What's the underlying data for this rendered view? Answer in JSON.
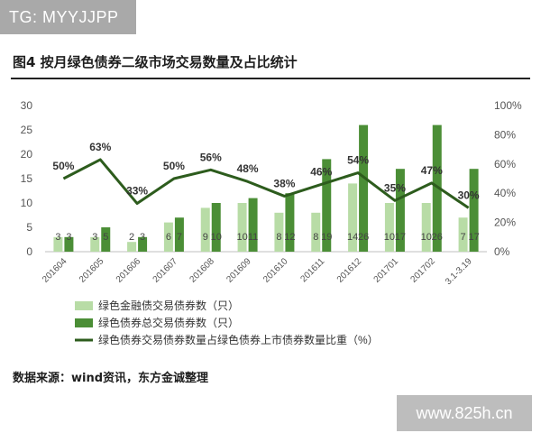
{
  "watermark_top": "TG: MYYJJPP",
  "watermark_bottom": "www.825h.cn",
  "figure_title": "图4  按月绿色债券二级市场交易数量及占比统计",
  "source": "数据来源：wind资讯，东方金诚整理",
  "colors": {
    "series_light": "#b8dca6",
    "series_dark": "#4b8e36",
    "line": "#2d5c1d",
    "axis_text": "#555555"
  },
  "chart_data": {
    "type": "bar+line",
    "categories": [
      "201604",
      "201605",
      "201606",
      "201607",
      "201608",
      "201609",
      "201610",
      "201611",
      "201612",
      "201701",
      "201702",
      "3.1-3.19"
    ],
    "series": [
      {
        "name": "绿色金融债交易债券数（只）",
        "type": "bar",
        "axis": "left",
        "values": [
          3,
          3,
          2,
          6,
          9,
          10,
          8,
          8,
          14,
          10,
          10,
          7
        ]
      },
      {
        "name": "绿色债券总交易债券数（只）",
        "type": "bar",
        "axis": "left",
        "values": [
          3,
          5,
          3,
          7,
          10,
          11,
          12,
          19,
          26,
          17,
          26,
          17
        ]
      },
      {
        "name": "绿色债券交易债券数量占绿色债券上市债券数量比重（%）",
        "type": "line",
        "axis": "right",
        "values": [
          50,
          63,
          33,
          50,
          56,
          48,
          38,
          46,
          54,
          35,
          47,
          30
        ]
      }
    ],
    "bar_labels": [
      [
        "3",
        "3"
      ],
      [
        "3",
        "5"
      ],
      [
        "2",
        "3"
      ],
      [
        "6",
        "7"
      ],
      [
        "9",
        "10"
      ],
      [
        "10",
        "11"
      ],
      [
        "8",
        "12"
      ],
      [
        "8",
        "19"
      ],
      [
        "14",
        "26"
      ],
      [
        "10",
        "17"
      ],
      [
        "10",
        "26"
      ],
      [
        "7",
        "17"
      ]
    ],
    "line_labels": [
      "50%",
      "63%",
      "33%",
      "50%",
      "56%",
      "48%",
      "38%",
      "46%",
      "54%",
      "35%",
      "47%",
      "30%"
    ],
    "left_axis": {
      "min": 0,
      "max": 30,
      "ticks": [
        "0",
        "5",
        "10",
        "15",
        "20",
        "25",
        "30"
      ]
    },
    "right_axis": {
      "min": 0,
      "max": 100,
      "ticks": [
        "0%",
        "20%",
        "40%",
        "60%",
        "80%",
        "100%"
      ]
    },
    "grid": false,
    "legend_position": "bottom"
  }
}
